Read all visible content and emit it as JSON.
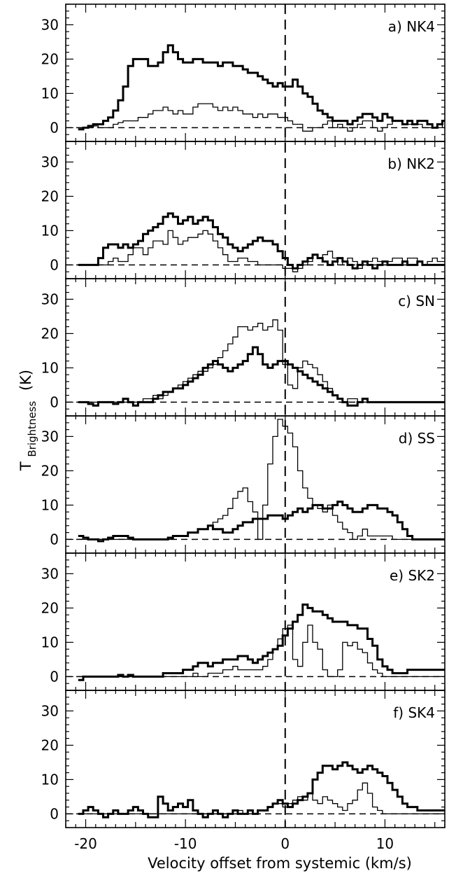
{
  "chart_data": [
    {
      "type": "line",
      "panel_label": "a) NK4",
      "xlim": [
        -22,
        16
      ],
      "ylim": [
        -4,
        36
      ],
      "xstep": 0.5,
      "x_start": -20.5,
      "series": [
        {
          "style": "thick",
          "values": [
            -0.5,
            0,
            0.5,
            1,
            1,
            2,
            3,
            5,
            8,
            12,
            18,
            20,
            20,
            20,
            18,
            18,
            19,
            22,
            24,
            22,
            20,
            19,
            19,
            20,
            20,
            19,
            19,
            19,
            18,
            19,
            19,
            18,
            18,
            17,
            16,
            16,
            15,
            14,
            13,
            12,
            13,
            12,
            12,
            14,
            12,
            10,
            9,
            7,
            5,
            4,
            3,
            2,
            2,
            2,
            1,
            2,
            3,
            4,
            4,
            3,
            2,
            4,
            3,
            2,
            2,
            1,
            2,
            1,
            2,
            2,
            1,
            0,
            1,
            2,
            2,
            1,
            1,
            2,
            1,
            1,
            0,
            1,
            2,
            1
          ]
        },
        {
          "style": "thin",
          "values": [
            0,
            0,
            0,
            0.5,
            0,
            0,
            0,
            1,
            1.5,
            2,
            2,
            2,
            3,
            3,
            4,
            5,
            5,
            6,
            5,
            4,
            5,
            4,
            4,
            6,
            7,
            7,
            7,
            6,
            5,
            6,
            5,
            6,
            5,
            4,
            4,
            3,
            4,
            3,
            4,
            4,
            3,
            3,
            2,
            1,
            1,
            -1,
            -1,
            0,
            0,
            1,
            2,
            0,
            1,
            0,
            -1,
            0,
            1,
            2,
            2,
            0,
            -1,
            0,
            1,
            2,
            2,
            1,
            1,
            1,
            1,
            0,
            0,
            0,
            1,
            0,
            0,
            0,
            0,
            0,
            0,
            0,
            0,
            0,
            0,
            0
          ]
        }
      ]
    },
    {
      "type": "line",
      "panel_label": "b) NK2",
      "xlim": [
        -22,
        16
      ],
      "ylim": [
        -4,
        36
      ],
      "xstep": 0.5,
      "x_start": -20.5,
      "series": [
        {
          "style": "thick",
          "values": [
            0,
            0,
            0,
            0,
            2,
            5,
            6,
            6,
            5,
            6,
            5,
            6,
            7,
            9,
            10,
            11,
            12,
            14,
            15,
            14,
            12,
            13,
            14,
            12,
            13,
            14,
            13,
            11,
            9,
            8,
            6,
            5,
            4,
            5,
            6,
            7,
            8,
            7,
            7,
            6,
            4,
            2,
            0,
            -1,
            0,
            1,
            2,
            3,
            2,
            1,
            0,
            1,
            2,
            1,
            0,
            -1,
            0,
            1,
            0,
            -1,
            0,
            1,
            0,
            0,
            0,
            1,
            0,
            0,
            1,
            0,
            0,
            0,
            0,
            0,
            0,
            1,
            1,
            0,
            0,
            0,
            0,
            0,
            0,
            0
          ]
        },
        {
          "style": "thin",
          "values": [
            0,
            0,
            0,
            0,
            0,
            0,
            1,
            2,
            1,
            1,
            3,
            5,
            5,
            3,
            5,
            7,
            7,
            6,
            10,
            8,
            6,
            7,
            8,
            8,
            9,
            10,
            9,
            7,
            5,
            3,
            1,
            1,
            2,
            2,
            1,
            1,
            0,
            0,
            0,
            0,
            0,
            -1,
            -1,
            -2,
            -1,
            0,
            1,
            3,
            2,
            3,
            4,
            2,
            0,
            1,
            2,
            1,
            -1,
            0,
            1,
            2,
            1,
            0,
            1,
            2,
            2,
            1,
            2,
            2,
            1,
            0,
            1,
            2,
            1,
            1,
            0,
            1,
            0,
            1,
            1,
            0,
            0,
            0,
            1,
            1
          ]
        }
      ]
    },
    {
      "type": "line",
      "panel_label": "c) SN",
      "xlim": [
        -22,
        16
      ],
      "ylim": [
        -4,
        36
      ],
      "xstep": 0.5,
      "x_start": -20.5,
      "series": [
        {
          "style": "thick",
          "values": [
            0,
            0,
            -0.5,
            -1,
            0,
            0,
            0,
            -0.5,
            0,
            1,
            0,
            -1,
            0,
            0,
            0,
            1,
            2,
            3,
            3,
            4,
            4,
            5,
            6,
            7,
            8,
            10,
            11,
            12,
            11,
            10,
            9,
            10,
            11,
            12,
            14,
            16,
            14,
            11,
            10,
            11,
            12,
            12,
            11,
            10,
            9,
            8,
            7,
            6,
            5,
            4,
            3,
            2,
            1,
            0,
            -1,
            -1,
            0,
            1,
            0,
            0,
            0,
            0,
            0,
            0,
            0,
            0,
            0,
            0,
            0,
            0,
            0,
            0,
            0,
            0,
            0,
            0,
            0,
            0,
            0,
            0,
            0,
            0,
            0,
            0
          ]
        },
        {
          "style": "thin",
          "values": [
            0,
            0,
            0,
            0,
            0,
            0,
            0,
            0,
            0,
            0,
            0,
            0,
            0,
            1,
            1,
            2,
            1,
            2,
            3,
            4,
            5,
            6,
            7,
            8,
            9,
            9,
            10,
            11,
            13,
            15,
            17,
            19,
            22,
            22,
            21,
            22,
            23,
            21,
            22,
            24,
            21,
            11,
            5,
            4,
            10,
            12,
            11,
            10,
            8,
            6,
            4,
            2,
            1,
            0,
            1,
            1,
            0,
            0,
            0,
            0,
            0,
            0,
            0,
            0,
            0,
            0,
            0,
            0,
            0,
            0,
            0,
            0,
            0,
            0,
            0,
            0,
            0,
            0,
            0,
            0,
            0,
            0,
            0,
            0
          ]
        }
      ]
    },
    {
      "type": "line",
      "panel_label": "d) SS",
      "xlim": [
        -22,
        16
      ],
      "ylim": [
        -4,
        36
      ],
      "xstep": 0.5,
      "x_start": -20.5,
      "series": [
        {
          "style": "thick",
          "values": [
            1,
            0.5,
            0,
            0,
            -0.5,
            0,
            0.5,
            1,
            1,
            1,
            0.5,
            0,
            0,
            0,
            0,
            0,
            0,
            0,
            0.5,
            1,
            1,
            1,
            2,
            2,
            3,
            3,
            4,
            3,
            3,
            2,
            2,
            3,
            4,
            5,
            5,
            6,
            6,
            6,
            7,
            7,
            7,
            6,
            7,
            8,
            9,
            8,
            9,
            10,
            10,
            9,
            9,
            10,
            11,
            10,
            9,
            8,
            8,
            9,
            10,
            10,
            9,
            9,
            8,
            7,
            5,
            3,
            1,
            0,
            0,
            0,
            0,
            0,
            0,
            0,
            0,
            0,
            0,
            0,
            0,
            0,
            0,
            0,
            0,
            0
          ]
        },
        {
          "style": "thin",
          "values": [
            0,
            0,
            0,
            0,
            0,
            0,
            0,
            0,
            0,
            0,
            0,
            0,
            0,
            0,
            0,
            0,
            0,
            0,
            0,
            1,
            1,
            1,
            2,
            2,
            3,
            3,
            4,
            5,
            6,
            7,
            9,
            12,
            14,
            15,
            11,
            8,
            0,
            10,
            22,
            30,
            35,
            33,
            31,
            27,
            20,
            15,
            12,
            10,
            9,
            8,
            10,
            7,
            5,
            3,
            2,
            0,
            1,
            3,
            1,
            1,
            1,
            1,
            1,
            0,
            0,
            0,
            0,
            0,
            0,
            0,
            0,
            0,
            0,
            0,
            0,
            0,
            0,
            0,
            0,
            0,
            0,
            0,
            0,
            0
          ]
        }
      ]
    },
    {
      "type": "line",
      "panel_label": "e) SK2",
      "xlim": [
        -22,
        16
      ],
      "ylim": [
        -4,
        36
      ],
      "xstep": 0.5,
      "x_start": -20.5,
      "series": [
        {
          "style": "thick",
          "values": [
            -1,
            0,
            0,
            0,
            0,
            0,
            0,
            0,
            0.5,
            0,
            0.5,
            0,
            0,
            0,
            0,
            0,
            0,
            1,
            1,
            1,
            1,
            2,
            2,
            3,
            4,
            4,
            3,
            4,
            4,
            5,
            5,
            5,
            6,
            6,
            5,
            4,
            5,
            6,
            7,
            8,
            9,
            12,
            14,
            16,
            18,
            21,
            20,
            19,
            19,
            18,
            17,
            16,
            16,
            16,
            15,
            15,
            14,
            14,
            11,
            9,
            5,
            3,
            2,
            1,
            1,
            1,
            2,
            2,
            2,
            2,
            2,
            2,
            2,
            2,
            2,
            2,
            2,
            2,
            2,
            2,
            2,
            2,
            2,
            2
          ]
        },
        {
          "style": "thin",
          "values": [
            0,
            0,
            0,
            0,
            0,
            0,
            0,
            0,
            0,
            0,
            0,
            0,
            0,
            0,
            0,
            0,
            0,
            0,
            0,
            0,
            0,
            0,
            0,
            1,
            0,
            0,
            1,
            1,
            1,
            2,
            2,
            3,
            2,
            2,
            2,
            2,
            2,
            3,
            5,
            8,
            11,
            14,
            15,
            5,
            3,
            10,
            15,
            10,
            8,
            2,
            0,
            0,
            2,
            10,
            9,
            10,
            8,
            7,
            4,
            2,
            1,
            0,
            0,
            0,
            0,
            0,
            0,
            0,
            0,
            0,
            0,
            0,
            0,
            0,
            0,
            0,
            0,
            0,
            0,
            0,
            0,
            0,
            0,
            0
          ]
        }
      ]
    },
    {
      "type": "line",
      "panel_label": "f) SK4",
      "xlim": [
        -22,
        16
      ],
      "ylim": [
        -4,
        36
      ],
      "xstep": 0.5,
      "x_start": -20.5,
      "series": [
        {
          "style": "thick",
          "values": [
            0,
            1,
            2,
            1,
            0,
            -1,
            0,
            1,
            0,
            0,
            1,
            2,
            1,
            0,
            -1,
            -1,
            5,
            3,
            1,
            2,
            3,
            2,
            4,
            1,
            0,
            -1,
            0,
            1,
            0,
            -1,
            0,
            1,
            0,
            0,
            1,
            0,
            1,
            1,
            2,
            3,
            4,
            3,
            2,
            3,
            4,
            5,
            6,
            10,
            12,
            14,
            14,
            13,
            14,
            15,
            14,
            13,
            12,
            13,
            14,
            13,
            12,
            11,
            9,
            7,
            5,
            3,
            2,
            2,
            1,
            1,
            1,
            1,
            1,
            1,
            1,
            1,
            1,
            1,
            1,
            1,
            1,
            1,
            1,
            1
          ]
        },
        {
          "style": "thin",
          "values": [
            0,
            0,
            0,
            0,
            0,
            0,
            0,
            0,
            0,
            0,
            0,
            0,
            0,
            0,
            0,
            0,
            0,
            0,
            0,
            0,
            0,
            0,
            0,
            0,
            0,
            0,
            0,
            0,
            0,
            0,
            0,
            1,
            1,
            0,
            0,
            0,
            1,
            1,
            2,
            3,
            3,
            2,
            3,
            4,
            5,
            4,
            6,
            4,
            3,
            5,
            4,
            3,
            2,
            1,
            3,
            4,
            7,
            9,
            6,
            2,
            1,
            0,
            0,
            0,
            0,
            0,
            0,
            0,
            0,
            0,
            0,
            0,
            0,
            0,
            0,
            0,
            0,
            0,
            0,
            0,
            0,
            0,
            0,
            0
          ]
        }
      ]
    }
  ],
  "axes": {
    "ylabel_main": "T",
    "ylabel_sub": "Brightness",
    "ylabel_unit": "(K)",
    "xlabel": "Velocity offset from systemic (km/s)",
    "y_ticks": [
      "0",
      "10",
      "20",
      "30"
    ],
    "x_ticks": [
      "-20",
      "-10",
      "0",
      "10"
    ]
  }
}
